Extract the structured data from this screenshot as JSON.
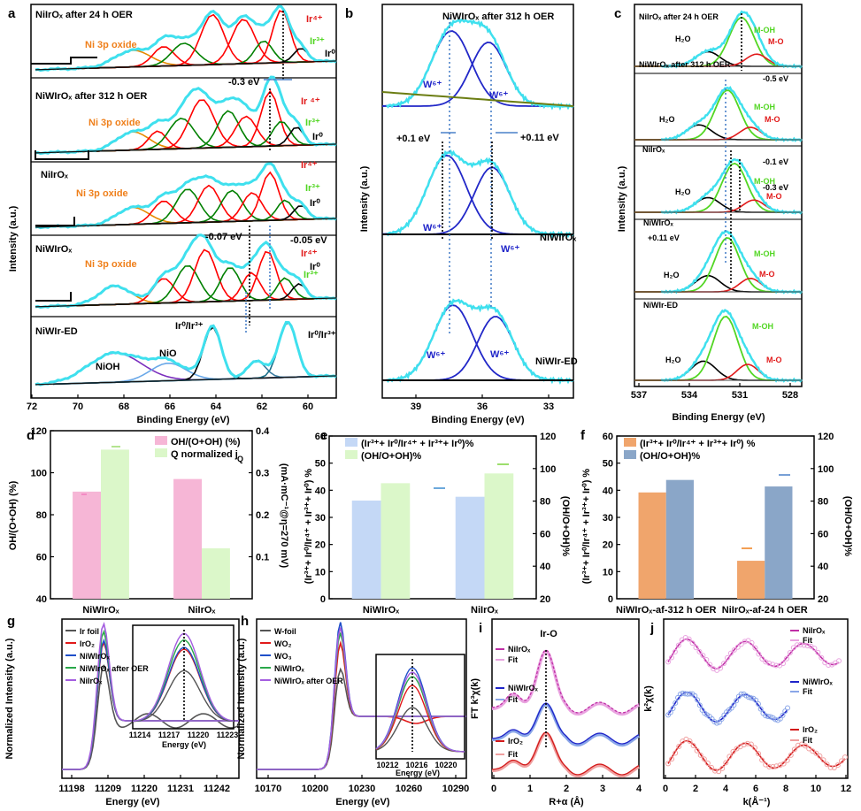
{
  "colors": {
    "cyan": "#3fe0ee",
    "red": "#e11a1a",
    "green": "#52d623",
    "black": "#000000",
    "blue": "#1f24c9",
    "orange": "#ef7f1a",
    "pink": "#f6b6d6",
    "lightgreen": "#dbf7c9",
    "lightblue": "#c4d8f6",
    "tan": "#f0a56c",
    "steel": "#8aa6c8",
    "purple": "#8a2be2"
  },
  "panels": {
    "a": {
      "letter": "a",
      "xlabel": "Binding Energy (eV)",
      "ylabel": "Intensity (a.u.)",
      "ticks": [
        "72",
        "70",
        "68",
        "66",
        "64",
        "62",
        "60"
      ],
      "labels": {
        "s1": "NiIrOₓ after 24 h OER",
        "s2": "NiWIrOₓ after 312 h OER",
        "s3": "NiIrOₓ",
        "s4": "NiWIrOₓ",
        "s5": "NiWIr-ED",
        "ni1": "Ni 3p oxide",
        "ni2": "Ni 3p oxide",
        "ni3": "Ni 3p oxide",
        "ni4": "Ni 3p oxide",
        "ir4a": "Ir⁴⁺",
        "ir3a": "Ir³⁺",
        "ir0a": "Ir⁰",
        "ir4b": "Ir ⁴⁺",
        "ir3b": "Ir³⁺",
        "ir0b": "Ir⁰",
        "ir4c": "Ir⁴⁺",
        "ir3c": "Ir³⁺",
        "ir0c": "Ir⁰",
        "ir4d": "Ir⁴⁺",
        "ir3d": "Ir³⁺",
        "ir0d": "Ir⁰",
        "sh1": "-0.3 eV",
        "sh2": "-0.07 eV",
        "sh3": "-0.05 eV",
        "nioh": "NiOH",
        "nio": "NiO",
        "ir03a": "Ir⁰/Ir³⁺",
        "ir03b": "Ir⁰/Ir³⁺"
      }
    },
    "b": {
      "letter": "b",
      "xlabel": "Binding Energy (eV)",
      "ylabel": "Intensity (a.u.)",
      "ticks": [
        "39",
        "36",
        "33"
      ],
      "labels": {
        "s1": "NiWIrOₓ after 312 h OER",
        "s2": "NiWIrOₓ",
        "s3": "NiWIr-ED",
        "w1": "W⁶⁺",
        "w2": "W⁶⁺",
        "w3": "W⁶⁺",
        "w4": "W⁶⁺",
        "w5": "W⁶⁺",
        "w6": "W⁶⁺",
        "sh1": "+0.1 eV",
        "sh2": "+0.11 eV"
      }
    },
    "c": {
      "letter": "c",
      "xlabel": "Binding Energy (eV)",
      "ylabel": "Intensity (a.u.)",
      "ticks": [
        "537",
        "534",
        "531",
        "528"
      ],
      "labels": {
        "s1": "NiIrOₓ after 24 h OER",
        "s2": "NiWIrOₓ after 312 h OER",
        "s3": "NiIrOₓ",
        "s4": "NiWIrOₓ",
        "s5": "NiWIr-ED",
        "moh": "M-OH",
        "mo": "M-O",
        "h2o": "H₂O",
        "sh1": "-0.5 eV",
        "sh2": "-0.1 eV",
        "sh3": "-0.3 eV",
        "sh4": "+0.11 eV"
      }
    },
    "d": {
      "letter": "d",
      "yleft": "OH/(O+OH) (%)",
      "yright": "(mA·mC⁻¹@η=270 mV)",
      "leg1": "OH/(O+OH) (%)",
      "leg2": "Q normalized j",
      "leg2sub": "Q",
      "yticksL": [
        "40",
        "60",
        "80",
        "100",
        "120"
      ],
      "yticksR": [
        "0.1",
        "0.2",
        "0.3",
        "0.4"
      ]
    },
    "e": {
      "letter": "e",
      "yleft": "(Ir³⁺+ Ir⁰/Ir⁴⁺ + Ir³⁺+ Ir⁰) %",
      "yright": "(OH/O+OH)%",
      "leg1": "(Ir³⁺+ Ir⁰/Ir⁴⁺ + Ir³⁺+ Ir⁰)%",
      "leg2": "(OH/O+OH)%",
      "yticksL": [
        "0",
        "10",
        "20",
        "30",
        "40",
        "50",
        "60"
      ],
      "yticksR": [
        "20",
        "40",
        "60",
        "80",
        "100",
        "120"
      ]
    },
    "f": {
      "letter": "f",
      "yleft": "(Ir³⁺+ Ir⁰/Ir⁴⁺ + Ir³⁺+ Ir⁰) %",
      "yright": "(OH/O+OH)%",
      "leg1": "(Ir³⁺+ Ir⁰/Ir⁴⁺ + Ir³⁺+ Ir⁰) %",
      "leg2": "(OH/O+OH)%",
      "yticksL": [
        "0",
        "10",
        "20",
        "30",
        "40",
        "50",
        "60"
      ],
      "yticksR": [
        "20",
        "40",
        "60",
        "80",
        "100",
        "120"
      ]
    },
    "g": {
      "letter": "g",
      "xlabel": "Energy (eV)",
      "ylabel": "Normalized Intensity (a.u.)",
      "ticks": [
        "11198",
        "11209",
        "11220",
        "11231",
        "11242"
      ],
      "inset_ticks": [
        "11214",
        "11217",
        "11220",
        "11223"
      ],
      "inset_xlabel": "Energy (eV)"
    },
    "h": {
      "letter": "h",
      "xlabel": "Energy (eV)",
      "ylabel": "Normalized Intensity (a.u.)",
      "ticks": [
        "10170",
        "10200",
        "10230",
        "10260",
        "10290"
      ],
      "inset_ticks": [
        "10212",
        "10216",
        "10220"
      ],
      "inset_xlabel": "Energy (eV)"
    },
    "i": {
      "letter": "i",
      "xlabel": "R+α (Å)",
      "ylabel": "FT k³χ(k)",
      "title": "Ir-O",
      "ticks": [
        "0",
        "1",
        "2",
        "3",
        "4"
      ],
      "legend": [
        "NiIrOₓ",
        "Fit",
        "NiWIrOₓ",
        "Fit",
        "IrO₂",
        "Fit"
      ]
    },
    "j": {
      "letter": "j",
      "xlabel": "k(Å⁻¹)",
      "ylabel": "k²χ(k)",
      "ticks": [
        "0",
        "2",
        "4",
        "6",
        "8",
        "10",
        "12"
      ],
      "legend": [
        "NiIrOₓ",
        "Fit",
        "NiWIrOₓ",
        "Fit",
        "IrO₂",
        "Fit"
      ]
    }
  },
  "chart_data": [
    {
      "panel": "a",
      "type": "line",
      "xlabel": "Binding Energy (eV)",
      "ylabel": "Intensity (a.u.)",
      "xlim": [
        72,
        59
      ],
      "xticks": [
        72,
        70,
        68,
        66,
        64,
        62,
        60
      ],
      "series": [
        {
          "name": "NiIrOₓ after 24 h OER"
        },
        {
          "name": "NiWIrOₓ after 312 h OER"
        },
        {
          "name": "NiIrOₓ"
        },
        {
          "name": "NiWIrOₓ"
        },
        {
          "name": "NiWIr-ED"
        }
      ]
    },
    {
      "panel": "b",
      "type": "line",
      "xlabel": "Binding Energy (eV)",
      "ylabel": "Intensity (a.u.)",
      "xlim": [
        40.5,
        32.5
      ],
      "xticks": [
        39,
        36,
        33
      ],
      "series": [
        {
          "name": "NiWIrOₓ after 312 h OER"
        },
        {
          "name": "NiWIrOₓ"
        },
        {
          "name": "NiWIr-ED"
        }
      ]
    },
    {
      "panel": "c",
      "type": "line",
      "xlabel": "Binding Energy (eV)",
      "ylabel": "Intensity (a.u.)",
      "xlim": [
        537,
        527
      ],
      "xticks": [
        537,
        534,
        531,
        528
      ],
      "series": [
        {
          "name": "NiIrOₓ after 24 h OER"
        },
        {
          "name": "NiWIrOₓ after 312 h OER"
        },
        {
          "name": "NiIrOₓ"
        },
        {
          "name": "NiWIrOₓ"
        },
        {
          "name": "NiWIr-ED"
        }
      ]
    },
    {
      "panel": "d",
      "type": "bar",
      "categories": [
        "NiWIrOₓ",
        "NiIrOₓ"
      ],
      "series": [
        {
          "name": "OH/(O+OH) (%)",
          "axis": "left",
          "values": [
            91,
            97
          ]
        },
        {
          "name": "Q normalized jQ",
          "axis": "right",
          "values": [
            0.355,
            0.12
          ]
        }
      ],
      "ylim_left": [
        40,
        120
      ],
      "ylim_right": [
        0.0,
        0.4
      ]
    },
    {
      "panel": "e",
      "type": "bar",
      "categories": [
        "NiWIrOₓ",
        "NiIrOₓ"
      ],
      "series": [
        {
          "name": "(Ir³⁺+ Ir⁰/Ir⁴⁺ + Ir³⁺+ Ir⁰)%",
          "axis": "left",
          "values": [
            36.2,
            37.6
          ]
        },
        {
          "name": "(OH/O+OH)%",
          "axis": "right",
          "values": [
            91,
            97
          ]
        }
      ],
      "ylim_left": [
        0,
        60
      ],
      "ylim_right": [
        20,
        120
      ]
    },
    {
      "panel": "f",
      "type": "bar",
      "categories": [
        "NiWIrOₓ-af-312 h OER",
        "NiIrOₓ-af-24 h OER"
      ],
      "series": [
        {
          "name": "(Ir³⁺+ Ir⁰/Ir⁴⁺ + Ir³⁺+ Ir⁰) %",
          "axis": "left",
          "values": [
            39.2,
            14.0
          ]
        },
        {
          "name": "(OH/O+OH)%",
          "axis": "right",
          "values": [
            93,
            89
          ]
        }
      ],
      "ylim_left": [
        0,
        60
      ],
      "ylim_right": [
        20,
        120
      ]
    },
    {
      "panel": "g",
      "type": "line",
      "xlabel": "Energy (eV)",
      "ylabel": "Normalized Intensity (a.u.)",
      "xlim": [
        11192,
        11252
      ],
      "xticks": [
        11198,
        11209,
        11220,
        11231,
        11242
      ],
      "series": [
        {
          "name": "Ir foil"
        },
        {
          "name": "IrO₂"
        },
        {
          "name": "NiWIrOₓ"
        },
        {
          "name": "NiWIrOₓ after OER"
        },
        {
          "name": "NiIrOₓ"
        }
      ]
    },
    {
      "panel": "h",
      "type": "line",
      "xlabel": "Energy (eV)",
      "ylabel": "Normalized Intensity (a.u.)",
      "xlim": [
        10155,
        10305
      ],
      "xticks": [
        10170,
        10200,
        10230,
        10260,
        10290
      ],
      "series": [
        {
          "name": "W-foil"
        },
        {
          "name": "WO₂"
        },
        {
          "name": "WO₃"
        },
        {
          "name": "NiWIrOₓ"
        },
        {
          "name": "NiWIrOₓ after OER"
        }
      ]
    },
    {
      "panel": "i",
      "type": "line",
      "xlabel": "R+α (Å)",
      "ylabel": "FT k³χ(k)",
      "xlim": [
        0,
        4
      ],
      "xticks": [
        0,
        1,
        2,
        3,
        4
      ],
      "series": [
        {
          "name": "NiIrOₓ"
        },
        {
          "name": "Fit"
        },
        {
          "name": "NiWIrOₓ"
        },
        {
          "name": "Fit"
        },
        {
          "name": "IrO₂"
        },
        {
          "name": "Fit"
        }
      ]
    },
    {
      "panel": "j",
      "type": "line",
      "xlabel": "k(Å⁻¹)",
      "ylabel": "k²χ(k)",
      "xlim": [
        0,
        12
      ],
      "xticks": [
        0,
        2,
        4,
        6,
        8,
        10,
        12
      ],
      "series": [
        {
          "name": "NiIrOₓ"
        },
        {
          "name": "Fit"
        },
        {
          "name": "NiWIrOₓ"
        },
        {
          "name": "Fit"
        },
        {
          "name": "IrO₂"
        },
        {
          "name": "Fit"
        }
      ]
    }
  ]
}
